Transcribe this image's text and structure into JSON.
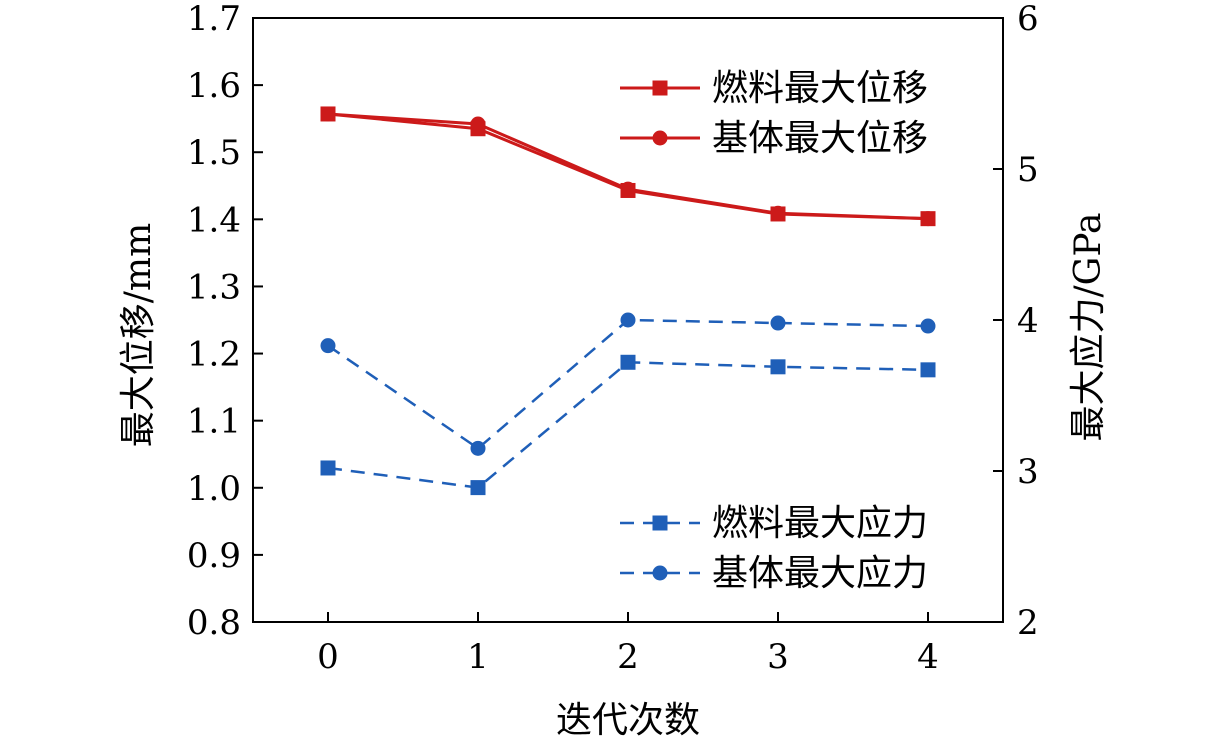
{
  "chart_data": {
    "type": "line",
    "xlabel": "迭代次数",
    "ylabel": "最大位移/mm",
    "y2label": "最大应力/GPa",
    "x": [
      0,
      1,
      2,
      3,
      4
    ],
    "xlim": [
      -0.5,
      4.5
    ],
    "ylim": [
      0.8,
      1.7
    ],
    "y2lim": [
      2,
      6
    ],
    "xticks": [
      "0",
      "1",
      "2",
      "3",
      "4"
    ],
    "yticks": [
      "0.8",
      "0.9",
      "1.0",
      "1.1",
      "1.2",
      "1.3",
      "1.4",
      "1.5",
      "1.6",
      "1.7"
    ],
    "y2ticks": [
      "2",
      "3",
      "4",
      "5",
      "6"
    ],
    "grid": false,
    "colors": {
      "displacement": "#cc1a1a",
      "stress": "#1f5fb8"
    },
    "series": [
      {
        "name": "燃料最大位移",
        "axis": "left",
        "marker": "square",
        "line": "solid",
        "color": "#cc1a1a",
        "values": [
          1.557,
          1.535,
          1.443,
          1.408,
          1.401
        ]
      },
      {
        "name": "基体最大位移",
        "axis": "left",
        "marker": "circle",
        "line": "solid",
        "color": "#cc1a1a",
        "values": [
          1.557,
          1.542,
          1.445,
          1.409,
          1.401
        ]
      },
      {
        "name": "燃料最大应力",
        "axis": "right",
        "marker": "square",
        "line": "dashed",
        "color": "#1f5fb8",
        "values": [
          3.02,
          2.89,
          3.72,
          3.69,
          3.67
        ]
      },
      {
        "name": "基体最大应力",
        "axis": "right",
        "marker": "circle",
        "line": "dashed",
        "color": "#1f5fb8",
        "values": [
          3.83,
          3.15,
          4.0,
          3.98,
          3.96
        ]
      }
    ],
    "legends": [
      {
        "placement": "top-right",
        "series": [
          "燃料最大位移",
          "基体最大位移"
        ]
      },
      {
        "placement": "bottom-right",
        "series": [
          "燃料最大应力",
          "基体最大应力"
        ]
      }
    ]
  }
}
